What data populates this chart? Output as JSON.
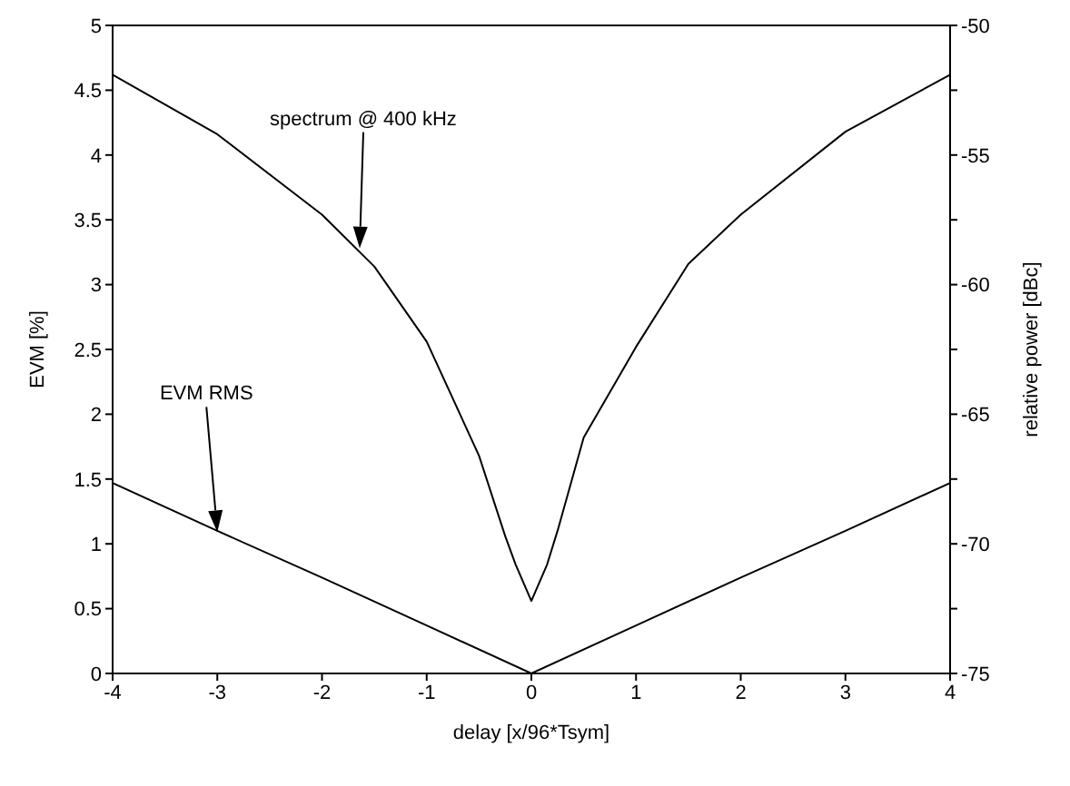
{
  "chart_data": {
    "type": "line",
    "xlabel": "delay [x/96*Tsym]",
    "ylabel": "EVM [%]",
    "y2label": "relative power [dBc]",
    "series": [
      {
        "color": "#000000",
        "x": [
          -4,
          -3,
          -2,
          -1,
          0,
          1,
          2,
          3,
          4
        ],
        "values": [
          1.47,
          1.1,
          0.74,
          0.37,
          0,
          0.37,
          0.74,
          1.1,
          1.47
        ]
      },
      {
        "color": "#000000",
        "axis": "y2",
        "x": [
          -4,
          -3,
          -2,
          -1.5,
          -1,
          -0.5,
          -0.25,
          -0.15,
          0,
          0.15,
          0.25,
          0.5,
          1,
          1.5,
          2,
          3,
          4
        ],
        "values": [
          -51.9,
          -54.2,
          -57.3,
          -59.3,
          -62.2,
          -66.6,
          -69.7,
          -70.8,
          -72.2,
          -70.8,
          -69.5,
          -65.9,
          -62.4,
          -59.2,
          -57.3,
          -54.1,
          -51.9
        ]
      }
    ],
    "annotations": [
      "spectrum @ 400 kHz",
      "EVM RMS"
    ],
    "xlim": [
      -4,
      4
    ],
    "xticks": [
      -4,
      -3,
      -2,
      -1,
      0,
      1,
      2,
      3,
      4
    ],
    "ylim": [
      0,
      5
    ],
    "yticks": [
      0,
      0.5,
      1,
      1.5,
      2,
      2.5,
      3,
      3.5,
      4,
      4.5,
      5
    ],
    "y2lim": [
      -75,
      -50
    ],
    "y2ticks": [
      -75,
      {
        "value": -72.5,
        "label": null
      },
      -70,
      {
        "value": -67.5,
        "label": null
      },
      -65,
      {
        "value": -62.5,
        "label": null
      },
      -60,
      {
        "value": -57.5,
        "label": null
      },
      -55,
      {
        "value": -52.5,
        "label": null
      },
      -50
    ],
    "marker": "none",
    "line_style": "solid"
  }
}
